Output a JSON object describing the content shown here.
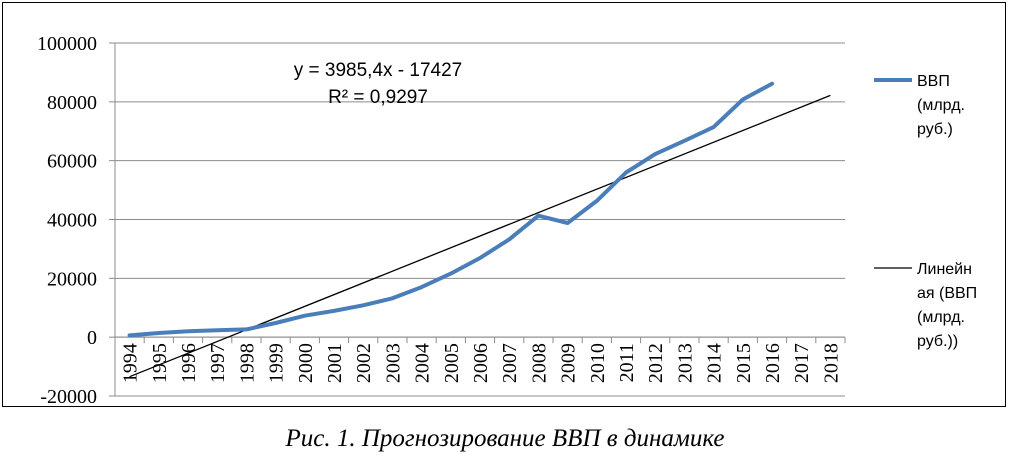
{
  "chart_data": {
    "type": "line",
    "categories": [
      "1994",
      "1995",
      "1996",
      "1997",
      "1998",
      "1999",
      "2000",
      "2001",
      "2002",
      "2003",
      "2004",
      "2005",
      "2006",
      "2007",
      "2008",
      "2009",
      "2010",
      "2011",
      "2012",
      "2013",
      "2014",
      "2015",
      "2016",
      "2017",
      "2018"
    ],
    "series": [
      {
        "name": "ВВП (млрд. руб.)",
        "color": "#4a7ebb",
        "values": [
          610,
          1429,
          2008,
          2343,
          2630,
          4823,
          7306,
          8944,
          10831,
          13208,
          17027,
          21610,
          26917,
          33248,
          41277,
          38807,
          46309,
          55967,
          62218,
          66755,
          71406,
          80804,
          86149,
          null,
          null
        ]
      },
      {
        "name": "Линейная (ВВП (млрд. руб.))",
        "color": "#000000",
        "trend": {
          "slope": 3985.4,
          "intercept": -17427,
          "x_start": 1,
          "x_end": 25
        }
      }
    ],
    "y_ticks": [
      "100000",
      "80000",
      "60000",
      "40000",
      "20000",
      "0",
      "-20000"
    ],
    "ylim": [
      -20000,
      100000
    ],
    "grid": true,
    "legend_position": "right",
    "annotation": {
      "equation": "y = 3985,4x - 17427",
      "r_squared": "R² = 0,9297"
    }
  },
  "legend": {
    "gdp_label_lines": [
      "ВВП",
      "(млрд.",
      "руб.)"
    ],
    "trend_label_lines": [
      "Линейн",
      "ая (ВВП",
      "(млрд.",
      "руб.))"
    ]
  },
  "caption": "Рис. 1. Прогнозирование ВВП в динамике"
}
